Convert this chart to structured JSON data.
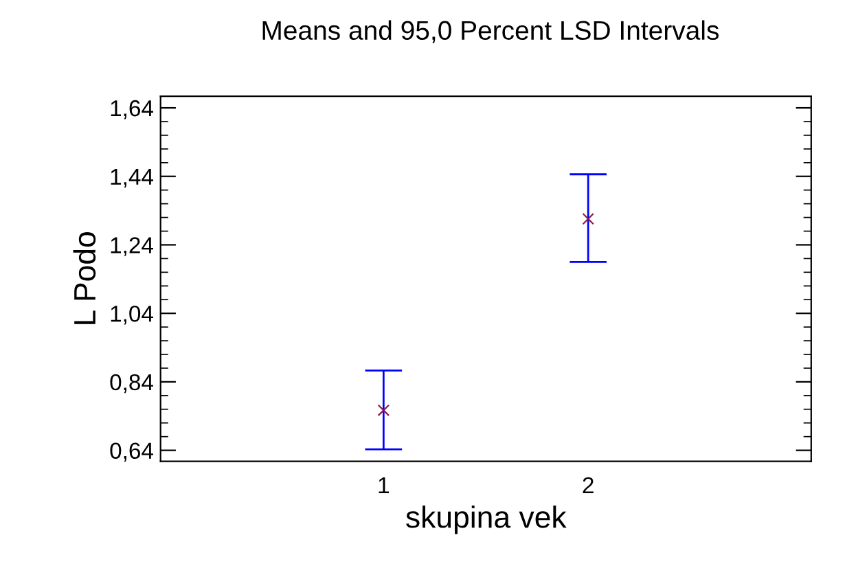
{
  "chart_data": {
    "type": "scatter",
    "title": "Means and 95,0 Percent LSD Intervals",
    "xlabel": "skupina vek",
    "ylabel": "L Podo",
    "x": [
      1,
      2
    ],
    "series": [
      {
        "color": "#8b1a4a",
        "values": [
          0.757,
          1.316
        ],
        "errors": [
          [
            0.643,
            0.873
          ],
          [
            1.19,
            1.446
          ]
        ]
      }
    ],
    "xlim": [
      -0.09,
      3.09
    ],
    "xticks": [
      1,
      2
    ],
    "ylim": [
      0.608,
      1.674
    ],
    "yticks": [
      {
        "value": 0.64,
        "label": "0,64"
      },
      {
        "value": 0.84,
        "label": "0,84"
      },
      {
        "value": 1.04,
        "label": "1,04"
      },
      {
        "value": 1.24,
        "label": "1,24"
      },
      {
        "value": 1.44,
        "label": "1,44"
      },
      {
        "value": 1.64,
        "label": "1,64"
      }
    ],
    "marker": "cross",
    "grid": false,
    "legend": false
  }
}
